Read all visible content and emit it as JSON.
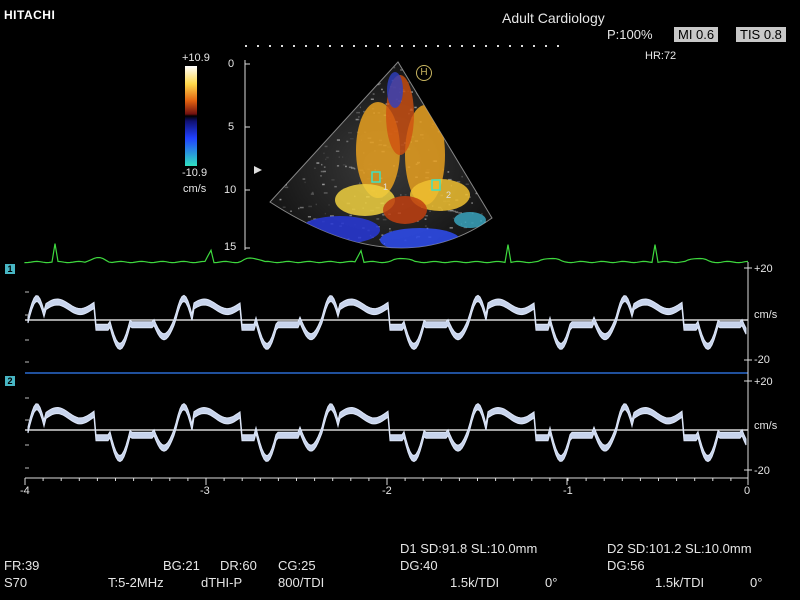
{
  "brand": "HITACHI",
  "preset": "Adult Cardiology",
  "power": "P:100%",
  "mi": "MI 0.6",
  "tis": "TIS 0.8",
  "hr": "HR:72",
  "color_scale": {
    "top": "+10.9",
    "bottom": "-10.9",
    "unit": "cm/s"
  },
  "depth_ticks": [
    "0",
    "5",
    "10",
    "15"
  ],
  "probe_marker": "H",
  "sample_labels": [
    "1",
    "2"
  ],
  "trace1": {
    "channel": "1",
    "top": "+20",
    "unit": "cm/s",
    "bottom": "-20"
  },
  "trace2": {
    "channel": "2",
    "top": "+20",
    "unit": "cm/s",
    "bottom": "-20"
  },
  "time_axis": [
    "-4",
    "-3",
    "-2",
    "-1",
    "0"
  ],
  "footer": {
    "fr": "FR:39",
    "bg": "BG:21",
    "dr": "DR:60",
    "cg": "CG:25",
    "probe": "S70",
    "freq": "T:5-2MHz",
    "mode": "dTHI-P",
    "tdi": "800/TDI",
    "d1": "D1  SD:91.8   SL:10.0mm",
    "dg1": "DG:40",
    "prf1": "1.5k/TDI",
    "ang1": "0°",
    "d2": "D2  SD:101.2  SL:10.0mm",
    "dg2": "DG:56",
    "prf2": "1.5k/TDI",
    "ang2": "0°"
  }
}
